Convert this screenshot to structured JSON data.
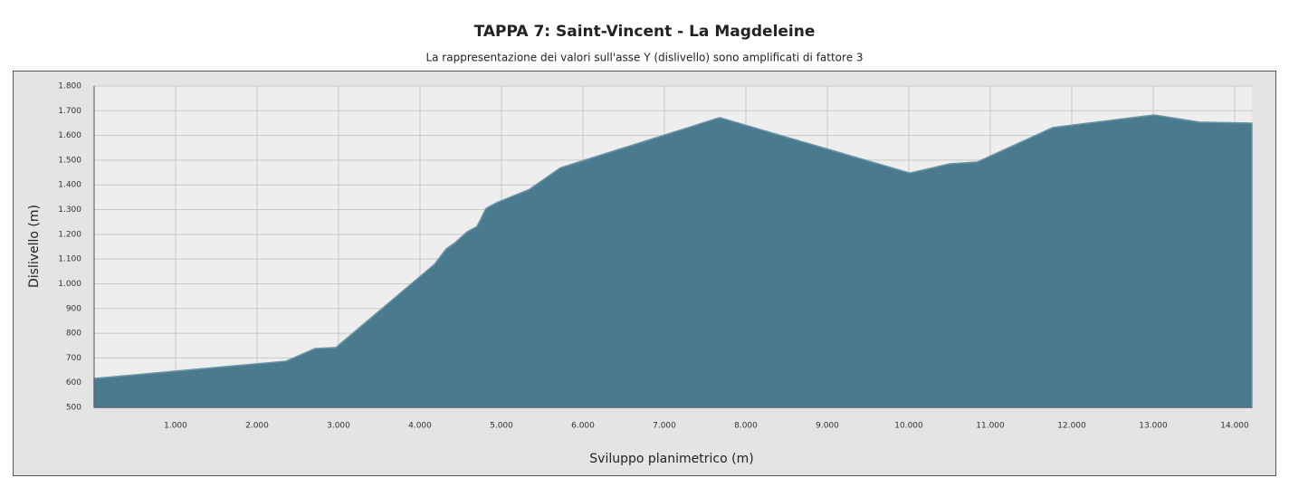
{
  "chart_data": {
    "type": "area",
    "title": "TAPPA 7: Saint-Vincent - La Magdeleine",
    "subtitle": "La rappresentazione dei valori sull'asse Y (dislivello) sono amplificati di fattore 3",
    "x_label": "Sviluppo planimetrico (m)",
    "y_label": "Dislivello (m)",
    "x": [
      0,
      2356,
      2711,
      2967,
      4178,
      4322,
      4433,
      4578,
      4700,
      4811,
      4933,
      5344,
      5722,
      7678,
      10011,
      10500,
      10844,
      11767,
      13011,
      13567,
      14211
    ],
    "values": [
      617,
      687,
      738,
      742,
      1079,
      1141,
      1167,
      1210,
      1232,
      1305,
      1327,
      1382,
      1469,
      1672,
      1448,
      1485,
      1493,
      1632,
      1683,
      1654,
      1650
    ],
    "color": "#4a7a8d",
    "line_color": "#6b96a6",
    "xlim": [
      0,
      14211
    ],
    "ylim": [
      500,
      1800
    ],
    "xticks": [
      {
        "value": 1000,
        "label": "1.000"
      },
      {
        "value": 2000,
        "label": "2.000"
      },
      {
        "value": 3000,
        "label": "3.000"
      },
      {
        "value": 4000,
        "label": "4.000"
      },
      {
        "value": 5000,
        "label": "5.000"
      },
      {
        "value": 6000,
        "label": "6.000"
      },
      {
        "value": 7000,
        "label": "7.000"
      },
      {
        "value": 8000,
        "label": "8.000"
      },
      {
        "value": 9000,
        "label": "9.000"
      },
      {
        "value": 10000,
        "label": "10.000"
      },
      {
        "value": 11000,
        "label": "11.000"
      },
      {
        "value": 12000,
        "label": "12.000"
      },
      {
        "value": 13000,
        "label": "13.000"
      },
      {
        "value": 14000,
        "label": "14.000"
      }
    ],
    "yticks": [
      500,
      600,
      700,
      800,
      900,
      {
        "value": 1000,
        "label": "1.000"
      },
      {
        "value": 1100,
        "label": "1.100"
      },
      {
        "value": 1200,
        "label": "1.200"
      },
      {
        "value": 1300,
        "label": "1.300"
      },
      {
        "value": 1400,
        "label": "1.400"
      },
      {
        "value": 1500,
        "label": "1.500"
      },
      {
        "value": 1600,
        "label": "1.600"
      },
      {
        "value": 1700,
        "label": "1.700"
      },
      {
        "value": 1800,
        "label": "1.800"
      }
    ],
    "grid": true
  }
}
